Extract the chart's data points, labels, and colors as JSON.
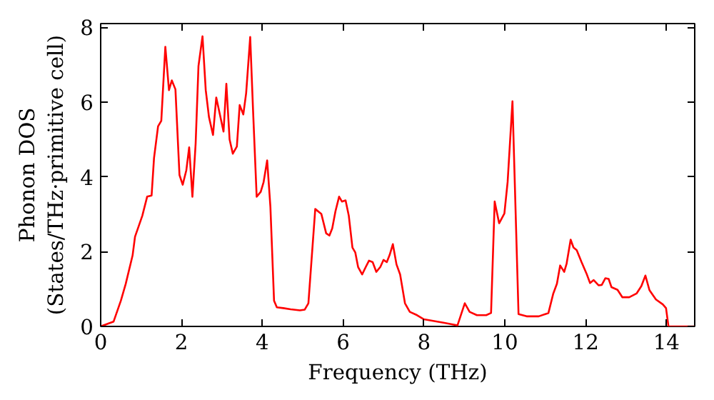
{
  "chart_data": {
    "type": "line",
    "xlabel": "Frequency (THz)",
    "ylabel": "Phonon DOS\n(States/THz·primitive cell)",
    "xlim": [
      0,
      14.7
    ],
    "ylim": [
      0,
      8.1
    ],
    "xticks": [
      0,
      2,
      4,
      6,
      8,
      10,
      12,
      14
    ],
    "yticks": [
      0,
      2,
      4,
      6,
      8
    ],
    "grid": false,
    "marker": "none",
    "line_style": "solid",
    "series": [
      {
        "color": "#ff0000",
        "x": [
          0,
          0.32,
          0.5,
          0.62,
          0.79,
          0.85,
          1.03,
          1.15,
          1.26,
          1.32,
          1.42,
          1.5,
          1.6,
          1.69,
          1.76,
          1.85,
          1.95,
          2.03,
          2.12,
          2.19,
          2.27,
          2.35,
          2.42,
          2.52,
          2.6,
          2.68,
          2.78,
          2.86,
          2.95,
          3.04,
          3.11,
          3.19,
          3.27,
          3.37,
          3.44,
          3.53,
          3.6,
          3.7,
          3.77,
          3.86,
          3.96,
          4.03,
          4.12,
          4.2,
          4.29,
          4.36,
          4.52,
          4.7,
          4.93,
          5.05,
          5.14,
          5.31,
          5.46,
          5.58,
          5.66,
          5.73,
          5.81,
          5.9,
          5.97,
          6.06,
          6.14,
          6.23,
          6.3,
          6.37,
          6.47,
          6.56,
          6.64,
          6.73,
          6.82,
          6.92,
          7.0,
          7.08,
          7.15,
          7.23,
          7.32,
          7.41,
          7.53,
          7.65,
          7.83,
          8.0,
          8.48,
          8.83,
          9.01,
          9.13,
          9.31,
          9.54,
          9.66,
          9.75,
          9.86,
          9.99,
          10.07,
          10.19,
          10.34,
          10.54,
          10.84,
          11.08,
          11.2,
          11.29,
          11.37,
          11.47,
          11.53,
          11.63,
          11.7,
          11.78,
          11.9,
          12.02,
          12.11,
          12.2,
          12.32,
          12.4,
          12.49,
          12.57,
          12.64,
          12.79,
          12.91,
          13.08,
          13.26,
          13.38,
          13.48,
          13.58,
          13.74,
          13.91,
          13.99,
          14.05,
          14.7
        ],
        "values": [
          0,
          0.13,
          0.69,
          1.14,
          1.9,
          2.4,
          2.96,
          3.47,
          3.5,
          4.5,
          5.35,
          5.5,
          7.48,
          6.32,
          6.58,
          6.34,
          4.05,
          3.79,
          4.18,
          4.79,
          3.47,
          4.89,
          6.96,
          7.76,
          6.32,
          5.6,
          5.12,
          6.12,
          5.67,
          5.21,
          6.49,
          5.0,
          4.62,
          4.81,
          5.92,
          5.67,
          6.24,
          7.74,
          5.8,
          3.47,
          3.6,
          3.85,
          4.44,
          3.2,
          0.69,
          0.51,
          0.49,
          0.46,
          0.43,
          0.45,
          0.62,
          3.14,
          3.01,
          2.49,
          2.43,
          2.62,
          3.08,
          3.47,
          3.34,
          3.37,
          2.96,
          2.11,
          1.98,
          1.59,
          1.39,
          1.59,
          1.76,
          1.72,
          1.46,
          1.59,
          1.78,
          1.72,
          1.91,
          2.2,
          1.66,
          1.39,
          0.62,
          0.39,
          0.3,
          0.19,
          0.1,
          0.03,
          0.62,
          0.39,
          0.3,
          0.3,
          0.36,
          3.34,
          2.76,
          3.02,
          3.86,
          6.02,
          0.33,
          0.27,
          0.27,
          0.36,
          0.88,
          1.14,
          1.63,
          1.46,
          1.68,
          2.32,
          2.11,
          2.04,
          1.72,
          1.42,
          1.16,
          1.24,
          1.1,
          1.11,
          1.29,
          1.27,
          1.05,
          0.98,
          0.78,
          0.78,
          0.88,
          1.08,
          1.36,
          0.97,
          0.72,
          0.59,
          0.49,
          0,
          0
        ]
      }
    ]
  }
}
